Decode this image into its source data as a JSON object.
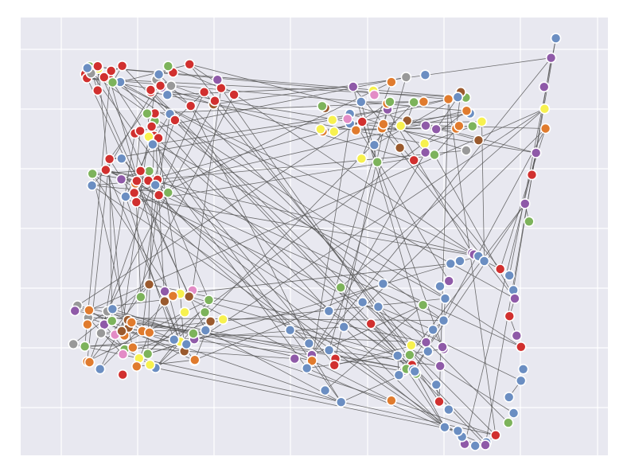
{
  "figure": {
    "background": "#ffffff",
    "panel_color": "#e8e8f0",
    "grid_color": "#ffffff",
    "edge_color": "#555555",
    "node_outline": "#ffffff"
  },
  "palette": {
    "red": "#d1302f",
    "blue": "#6b8ec2",
    "green": "#7db35b",
    "purple": "#8f5aa8",
    "orange": "#e07b2e",
    "yellow": "#f7f14f",
    "brown": "#9a5a2e",
    "pink": "#e38cc6",
    "grey": "#999999"
  },
  "chart_data": {
    "type": "network",
    "grid": true,
    "legend": "none",
    "clusters": [
      {
        "id": "upper-left-a",
        "colors": [
          "red",
          "red",
          "red",
          "blue",
          "green",
          "red",
          "yellow",
          "grey",
          "red",
          "blue",
          "red",
          "red",
          "green",
          "red"
        ]
      },
      {
        "id": "upper-left-b",
        "colors": [
          "red",
          "red",
          "brown",
          "purple",
          "grey",
          "red",
          "blue",
          "red",
          "red",
          "red",
          "blue",
          "red",
          "red",
          "grey",
          "red",
          "green",
          "purple",
          "red"
        ]
      },
      {
        "id": "upper-left-c",
        "colors": [
          "red",
          "red",
          "red",
          "green",
          "red",
          "blue",
          "red",
          "red",
          "red",
          "yellow",
          "red",
          "green",
          "blue"
        ]
      },
      {
        "id": "left-middle",
        "colors": [
          "red",
          "red",
          "green",
          "blue",
          "red",
          "red",
          "green",
          "red",
          "blue",
          "red",
          "red",
          "orange",
          "red",
          "green",
          "red",
          "purple",
          "blue",
          "blue",
          "red"
        ]
      },
      {
        "id": "upper-right",
        "colors": [
          "green",
          "brown",
          "purple",
          "orange",
          "blue",
          "yellow",
          "yellow",
          "yellow",
          "orange",
          "brown",
          "brown",
          "purple",
          "yellow",
          "green",
          "orange",
          "brown",
          "blue",
          "grey",
          "yellow",
          "green",
          "orange",
          "orange",
          "yellow",
          "blue",
          "green",
          "purple",
          "orange",
          "blue",
          "pink",
          "grey",
          "pink",
          "brown",
          "orange",
          "yellow",
          "orange",
          "green",
          "purple",
          "yellow",
          "orange",
          "orange",
          "green",
          "red",
          "green",
          "blue",
          "orange",
          "blue",
          "blue",
          "purple",
          "red"
        ]
      },
      {
        "id": "far-right",
        "colors": [
          "blue",
          "purple",
          "purple",
          "yellow",
          "orange",
          "purple",
          "red",
          "purple",
          "green"
        ]
      },
      {
        "id": "lower-left",
        "colors": [
          "purple",
          "green",
          "green",
          "blue",
          "green",
          "orange",
          "brown",
          "yellow",
          "pink",
          "grey",
          "yellow",
          "orange",
          "green",
          "purple",
          "orange",
          "orange",
          "brown",
          "pink",
          "grey",
          "brown",
          "yellow",
          "orange",
          "grey",
          "blue",
          "orange",
          "brown",
          "grey",
          "orange",
          "yellow",
          "green",
          "purple",
          "blue",
          "orange",
          "brown",
          "pink",
          "grey",
          "yellow",
          "green",
          "orange",
          "brown",
          "blue",
          "orange",
          "brown",
          "blue",
          "green",
          "yellow",
          "orange",
          "pink",
          "brown",
          "purple",
          "green",
          "orange",
          "blue",
          "red"
        ]
      },
      {
        "id": "lower-middle",
        "colors": [
          "blue",
          "green",
          "yellow",
          "purple",
          "green",
          "blue",
          "blue",
          "red",
          "blue",
          "blue",
          "green",
          "blue",
          "blue",
          "purple",
          "green",
          "blue",
          "blue",
          "blue",
          "blue",
          "purple",
          "green",
          "red",
          "blue",
          "orange",
          "blue",
          "red",
          "red",
          "purple",
          "blue",
          "blue",
          "orange",
          "purple",
          "blue"
        ]
      },
      {
        "id": "lower-right",
        "colors": [
          "red",
          "blue",
          "blue",
          "blue",
          "blue",
          "green",
          "red",
          "blue",
          "purple",
          "blue",
          "purple",
          "blue",
          "blue",
          "blue",
          "blue",
          "red",
          "blue",
          "purple",
          "purple",
          "blue",
          "blue",
          "blue",
          "blue",
          "purple",
          "blue",
          "blue",
          "purple",
          "purple",
          "blue",
          "blue",
          "red",
          "blue",
          "blue",
          "purple",
          "red",
          "purple"
        ]
      }
    ],
    "edges": 160
  }
}
